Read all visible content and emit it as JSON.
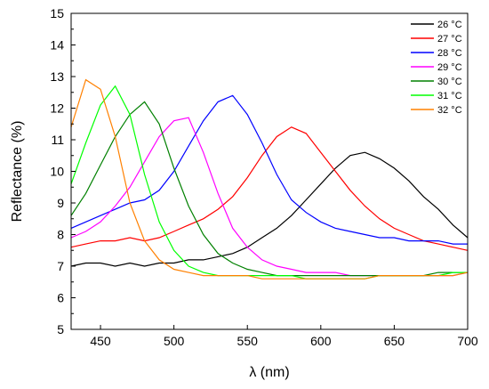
{
  "chart_data": {
    "type": "line",
    "xlabel": "λ (nm)",
    "ylabel": "Reflectance (%)",
    "xlim": [
      430,
      700
    ],
    "ylim": [
      5,
      15
    ],
    "x_ticks": [
      450,
      500,
      550,
      600,
      650,
      700
    ],
    "y_ticks": [
      5,
      6,
      7,
      8,
      9,
      10,
      11,
      12,
      13,
      14,
      15
    ],
    "legend_position": "top-right",
    "grid": false,
    "series": [
      {
        "name": "26 °C",
        "color": "#000000",
        "x": [
          430,
          440,
          450,
          460,
          470,
          480,
          490,
          500,
          510,
          520,
          530,
          540,
          550,
          560,
          570,
          580,
          590,
          600,
          610,
          620,
          630,
          640,
          650,
          660,
          670,
          680,
          690,
          700
        ],
        "y": [
          7.0,
          7.1,
          7.1,
          7.0,
          7.1,
          7.0,
          7.1,
          7.1,
          7.2,
          7.2,
          7.3,
          7.4,
          7.6,
          7.9,
          8.2,
          8.6,
          9.1,
          9.6,
          10.1,
          10.5,
          10.6,
          10.4,
          10.1,
          9.7,
          9.2,
          8.8,
          8.3,
          7.9
        ]
      },
      {
        "name": "27 °C",
        "color": "#ff0000",
        "x": [
          430,
          440,
          450,
          460,
          470,
          480,
          490,
          500,
          510,
          520,
          530,
          540,
          550,
          560,
          570,
          580,
          590,
          600,
          610,
          620,
          630,
          640,
          650,
          660,
          670,
          680,
          690,
          700
        ],
        "y": [
          7.6,
          7.7,
          7.8,
          7.8,
          7.9,
          7.8,
          7.9,
          8.1,
          8.3,
          8.5,
          8.8,
          9.2,
          9.8,
          10.5,
          11.1,
          11.4,
          11.2,
          10.6,
          10.0,
          9.4,
          8.9,
          8.5,
          8.2,
          8.0,
          7.8,
          7.7,
          7.6,
          7.5
        ]
      },
      {
        "name": "28 °C",
        "color": "#0000ff",
        "x": [
          430,
          440,
          450,
          460,
          470,
          480,
          490,
          500,
          510,
          520,
          530,
          540,
          550,
          560,
          570,
          580,
          590,
          600,
          610,
          620,
          630,
          640,
          650,
          660,
          670,
          680,
          690,
          700
        ],
        "y": [
          8.2,
          8.4,
          8.6,
          8.8,
          9.0,
          9.1,
          9.4,
          10.0,
          10.8,
          11.6,
          12.2,
          12.4,
          11.8,
          10.9,
          9.9,
          9.1,
          8.7,
          8.4,
          8.2,
          8.1,
          8.0,
          7.9,
          7.9,
          7.8,
          7.8,
          7.8,
          7.7,
          7.7
        ]
      },
      {
        "name": "29 °C",
        "color": "#ff00ff",
        "x": [
          430,
          440,
          450,
          460,
          470,
          480,
          490,
          500,
          510,
          520,
          530,
          540,
          550,
          560,
          570,
          580,
          590,
          600,
          610,
          620,
          630,
          640,
          650,
          660,
          670,
          680,
          690,
          700
        ],
        "y": [
          7.9,
          8.1,
          8.4,
          8.9,
          9.5,
          10.3,
          11.1,
          11.6,
          11.7,
          10.6,
          9.3,
          8.2,
          7.6,
          7.2,
          7.0,
          6.9,
          6.8,
          6.8,
          6.8,
          6.7,
          6.7,
          6.7,
          6.7,
          6.7,
          6.7,
          6.7,
          6.7,
          6.8
        ]
      },
      {
        "name": "30 °C",
        "color": "#008000",
        "x": [
          430,
          440,
          450,
          460,
          470,
          480,
          490,
          500,
          510,
          520,
          530,
          540,
          550,
          560,
          570,
          580,
          590,
          600,
          610,
          620,
          630,
          640,
          650,
          660,
          670,
          680,
          690,
          700
        ],
        "y": [
          8.6,
          9.3,
          10.2,
          11.1,
          11.8,
          12.2,
          11.5,
          10.1,
          8.9,
          8.0,
          7.4,
          7.1,
          6.9,
          6.8,
          6.7,
          6.7,
          6.7,
          6.7,
          6.7,
          6.7,
          6.7,
          6.7,
          6.7,
          6.7,
          6.7,
          6.8,
          6.8,
          6.8
        ]
      },
      {
        "name": "31 °C",
        "color": "#00ff00",
        "x": [
          430,
          440,
          450,
          460,
          470,
          480,
          490,
          500,
          510,
          520,
          530,
          540,
          550,
          560,
          570,
          580,
          590,
          600,
          610,
          620,
          630,
          640,
          650,
          660,
          670,
          680,
          690,
          700
        ],
        "y": [
          9.6,
          10.9,
          12.1,
          12.7,
          11.8,
          9.9,
          8.4,
          7.5,
          7.0,
          6.8,
          6.7,
          6.7,
          6.7,
          6.7,
          6.7,
          6.7,
          6.6,
          6.6,
          6.6,
          6.6,
          6.6,
          6.7,
          6.7,
          6.7,
          6.7,
          6.7,
          6.8,
          6.8
        ]
      },
      {
        "name": "32 °C",
        "color": "#ff8000",
        "x": [
          430,
          440,
          450,
          460,
          470,
          480,
          490,
          500,
          510,
          520,
          530,
          540,
          550,
          560,
          570,
          580,
          590,
          600,
          610,
          620,
          630,
          640,
          650,
          660,
          670,
          680,
          690,
          700
        ],
        "y": [
          11.4,
          12.9,
          12.6,
          11.1,
          9.0,
          7.8,
          7.2,
          6.9,
          6.8,
          6.7,
          6.7,
          6.7,
          6.7,
          6.6,
          6.6,
          6.6,
          6.6,
          6.6,
          6.6,
          6.6,
          6.6,
          6.7,
          6.7,
          6.7,
          6.7,
          6.7,
          6.7,
          6.8
        ]
      }
    ]
  }
}
